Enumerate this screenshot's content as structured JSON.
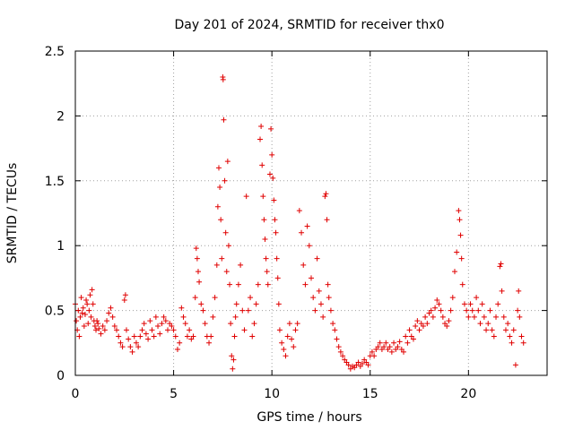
{
  "chart_data": {
    "type": "scatter",
    "title": "Day 201 of 2024, SRMTID for receiver thx0",
    "xlabel": "GPS time / hours",
    "ylabel": "SRMTID / TECUs",
    "xlim": [
      0,
      24
    ],
    "ylim": [
      0,
      2.5
    ],
    "xticks": [
      0,
      5,
      10,
      15,
      20
    ],
    "yticks": [
      0,
      0.5,
      1,
      1.5,
      2,
      2.5
    ],
    "grid": true,
    "marker": "+",
    "color": "#e00000",
    "series": [
      {
        "name": "thx0",
        "points": [
          [
            0.0,
            0.55
          ],
          [
            0.05,
            0.42
          ],
          [
            0.1,
            0.35
          ],
          [
            0.15,
            0.5
          ],
          [
            0.2,
            0.3
          ],
          [
            0.25,
            0.45
          ],
          [
            0.3,
            0.6
          ],
          [
            0.35,
            0.48
          ],
          [
            0.4,
            0.52
          ],
          [
            0.45,
            0.38
          ],
          [
            0.5,
            0.47
          ],
          [
            0.55,
            0.58
          ],
          [
            0.6,
            0.55
          ],
          [
            0.65,
            0.4
          ],
          [
            0.7,
            0.5
          ],
          [
            0.75,
            0.62
          ],
          [
            0.8,
            0.45
          ],
          [
            0.85,
            0.66
          ],
          [
            0.9,
            0.55
          ],
          [
            0.95,
            0.42
          ],
          [
            1.0,
            0.38
          ],
          [
            1.05,
            0.35
          ],
          [
            1.1,
            0.42
          ],
          [
            1.15,
            0.4
          ],
          [
            1.2,
            0.36
          ],
          [
            1.3,
            0.32
          ],
          [
            1.4,
            0.38
          ],
          [
            1.5,
            0.35
          ],
          [
            1.6,
            0.42
          ],
          [
            1.7,
            0.48
          ],
          [
            1.8,
            0.52
          ],
          [
            1.9,
            0.45
          ],
          [
            2.0,
            0.38
          ],
          [
            2.1,
            0.35
          ],
          [
            2.2,
            0.3
          ],
          [
            2.3,
            0.25
          ],
          [
            2.4,
            0.22
          ],
          [
            2.5,
            0.58
          ],
          [
            2.55,
            0.62
          ],
          [
            2.6,
            0.35
          ],
          [
            2.7,
            0.28
          ],
          [
            2.8,
            0.22
          ],
          [
            2.9,
            0.18
          ],
          [
            3.0,
            0.3
          ],
          [
            3.1,
            0.25
          ],
          [
            3.2,
            0.22
          ],
          [
            3.3,
            0.3
          ],
          [
            3.4,
            0.35
          ],
          [
            3.5,
            0.4
          ],
          [
            3.6,
            0.32
          ],
          [
            3.7,
            0.28
          ],
          [
            3.8,
            0.42
          ],
          [
            3.9,
            0.35
          ],
          [
            4.0,
            0.3
          ],
          [
            4.1,
            0.45
          ],
          [
            4.2,
            0.38
          ],
          [
            4.3,
            0.32
          ],
          [
            4.4,
            0.4
          ],
          [
            4.5,
            0.45
          ],
          [
            4.6,
            0.42
          ],
          [
            4.7,
            0.35
          ],
          [
            4.8,
            0.4
          ],
          [
            4.9,
            0.38
          ],
          [
            5.0,
            0.35
          ],
          [
            5.1,
            0.3
          ],
          [
            5.2,
            0.2
          ],
          [
            5.3,
            0.25
          ],
          [
            5.4,
            0.52
          ],
          [
            5.5,
            0.45
          ],
          [
            5.6,
            0.4
          ],
          [
            5.7,
            0.3
          ],
          [
            5.8,
            0.35
          ],
          [
            5.9,
            0.28
          ],
          [
            6.0,
            0.3
          ],
          [
            6.1,
            0.6
          ],
          [
            6.15,
            0.98
          ],
          [
            6.2,
            0.9
          ],
          [
            6.25,
            0.8
          ],
          [
            6.3,
            0.72
          ],
          [
            6.4,
            0.55
          ],
          [
            6.5,
            0.5
          ],
          [
            6.6,
            0.4
          ],
          [
            6.7,
            0.3
          ],
          [
            6.8,
            0.25
          ],
          [
            6.9,
            0.3
          ],
          [
            7.0,
            0.45
          ],
          [
            7.1,
            0.6
          ],
          [
            7.2,
            0.85
          ],
          [
            7.25,
            1.3
          ],
          [
            7.3,
            1.6
          ],
          [
            7.35,
            1.45
          ],
          [
            7.4,
            1.2
          ],
          [
            7.45,
            0.9
          ],
          [
            7.5,
            2.3
          ],
          [
            7.52,
            2.28
          ],
          [
            7.55,
            1.97
          ],
          [
            7.6,
            1.5
          ],
          [
            7.65,
            1.1
          ],
          [
            7.7,
            0.8
          ],
          [
            7.75,
            1.65
          ],
          [
            7.8,
            1.0
          ],
          [
            7.85,
            0.7
          ],
          [
            7.9,
            0.4
          ],
          [
            7.95,
            0.15
          ],
          [
            8.0,
            0.05
          ],
          [
            8.05,
            0.12
          ],
          [
            8.1,
            0.3
          ],
          [
            8.15,
            0.45
          ],
          [
            8.2,
            0.55
          ],
          [
            8.3,
            0.7
          ],
          [
            8.4,
            0.85
          ],
          [
            8.5,
            0.5
          ],
          [
            8.6,
            0.35
          ],
          [
            8.7,
            1.38
          ],
          [
            8.8,
            0.5
          ],
          [
            8.9,
            0.6
          ],
          [
            9.0,
            0.3
          ],
          [
            9.1,
            0.4
          ],
          [
            9.2,
            0.55
          ],
          [
            9.3,
            0.7
          ],
          [
            9.4,
            1.82
          ],
          [
            9.45,
            1.92
          ],
          [
            9.5,
            1.62
          ],
          [
            9.55,
            1.38
          ],
          [
            9.6,
            1.2
          ],
          [
            9.65,
            1.05
          ],
          [
            9.7,
            0.9
          ],
          [
            9.75,
            0.8
          ],
          [
            9.8,
            0.7
          ],
          [
            9.9,
            1.55
          ],
          [
            9.95,
            1.9
          ],
          [
            10.0,
            1.7
          ],
          [
            10.05,
            1.52
          ],
          [
            10.1,
            1.35
          ],
          [
            10.15,
            1.2
          ],
          [
            10.2,
            1.1
          ],
          [
            10.25,
            0.9
          ],
          [
            10.3,
            0.75
          ],
          [
            10.35,
            0.55
          ],
          [
            10.4,
            0.35
          ],
          [
            10.5,
            0.25
          ],
          [
            10.6,
            0.2
          ],
          [
            10.7,
            0.15
          ],
          [
            10.8,
            0.3
          ],
          [
            10.9,
            0.4
          ],
          [
            11.0,
            0.28
          ],
          [
            11.1,
            0.22
          ],
          [
            11.2,
            0.35
          ],
          [
            11.3,
            0.4
          ],
          [
            11.4,
            1.27
          ],
          [
            11.5,
            1.1
          ],
          [
            11.6,
            0.85
          ],
          [
            11.7,
            0.7
          ],
          [
            11.8,
            1.15
          ],
          [
            11.9,
            1.0
          ],
          [
            12.0,
            0.75
          ],
          [
            12.1,
            0.6
          ],
          [
            12.2,
            0.5
          ],
          [
            12.3,
            0.9
          ],
          [
            12.4,
            0.65
          ],
          [
            12.5,
            0.55
          ],
          [
            12.6,
            0.45
          ],
          [
            12.7,
            1.38
          ],
          [
            12.75,
            1.4
          ],
          [
            12.8,
            1.2
          ],
          [
            12.85,
            0.7
          ],
          [
            12.9,
            0.6
          ],
          [
            13.0,
            0.5
          ],
          [
            13.1,
            0.4
          ],
          [
            13.2,
            0.35
          ],
          [
            13.3,
            0.28
          ],
          [
            13.4,
            0.22
          ],
          [
            13.5,
            0.18
          ],
          [
            13.6,
            0.15
          ],
          [
            13.7,
            0.12
          ],
          [
            13.8,
            0.1
          ],
          [
            13.9,
            0.08
          ],
          [
            14.0,
            0.05
          ],
          [
            14.1,
            0.07
          ],
          [
            14.2,
            0.06
          ],
          [
            14.3,
            0.08
          ],
          [
            14.4,
            0.1
          ],
          [
            14.5,
            0.07
          ],
          [
            14.6,
            0.09
          ],
          [
            14.7,
            0.12
          ],
          [
            14.8,
            0.1
          ],
          [
            14.9,
            0.08
          ],
          [
            15.0,
            0.15
          ],
          [
            15.1,
            0.18
          ],
          [
            15.2,
            0.15
          ],
          [
            15.3,
            0.2
          ],
          [
            15.4,
            0.22
          ],
          [
            15.5,
            0.25
          ],
          [
            15.6,
            0.2
          ],
          [
            15.7,
            0.22
          ],
          [
            15.8,
            0.25
          ],
          [
            15.9,
            0.2
          ],
          [
            16.0,
            0.22
          ],
          [
            16.1,
            0.18
          ],
          [
            16.2,
            0.25
          ],
          [
            16.3,
            0.2
          ],
          [
            16.4,
            0.22
          ],
          [
            16.5,
            0.26
          ],
          [
            16.6,
            0.2
          ],
          [
            16.7,
            0.18
          ],
          [
            16.8,
            0.3
          ],
          [
            16.9,
            0.25
          ],
          [
            17.0,
            0.35
          ],
          [
            17.1,
            0.3
          ],
          [
            17.2,
            0.28
          ],
          [
            17.3,
            0.38
          ],
          [
            17.4,
            0.42
          ],
          [
            17.5,
            0.35
          ],
          [
            17.6,
            0.4
          ],
          [
            17.7,
            0.38
          ],
          [
            17.8,
            0.45
          ],
          [
            17.9,
            0.4
          ],
          [
            18.0,
            0.48
          ],
          [
            18.1,
            0.5
          ],
          [
            18.2,
            0.45
          ],
          [
            18.3,
            0.52
          ],
          [
            18.4,
            0.58
          ],
          [
            18.5,
            0.55
          ],
          [
            18.6,
            0.5
          ],
          [
            18.7,
            0.45
          ],
          [
            18.8,
            0.4
          ],
          [
            18.9,
            0.38
          ],
          [
            19.0,
            0.42
          ],
          [
            19.1,
            0.5
          ],
          [
            19.2,
            0.6
          ],
          [
            19.3,
            0.8
          ],
          [
            19.4,
            0.95
          ],
          [
            19.5,
            1.27
          ],
          [
            19.55,
            1.2
          ],
          [
            19.6,
            1.08
          ],
          [
            19.65,
            0.9
          ],
          [
            19.7,
            0.7
          ],
          [
            19.8,
            0.55
          ],
          [
            19.9,
            0.5
          ],
          [
            20.0,
            0.45
          ],
          [
            20.1,
            0.55
          ],
          [
            20.2,
            0.5
          ],
          [
            20.3,
            0.45
          ],
          [
            20.4,
            0.6
          ],
          [
            20.5,
            0.5
          ],
          [
            20.6,
            0.4
          ],
          [
            20.7,
            0.55
          ],
          [
            20.8,
            0.45
          ],
          [
            20.9,
            0.35
          ],
          [
            21.0,
            0.4
          ],
          [
            21.1,
            0.5
          ],
          [
            21.2,
            0.35
          ],
          [
            21.3,
            0.3
          ],
          [
            21.4,
            0.45
          ],
          [
            21.5,
            0.55
          ],
          [
            21.6,
            0.84
          ],
          [
            21.65,
            0.86
          ],
          [
            21.7,
            0.65
          ],
          [
            21.8,
            0.45
          ],
          [
            21.9,
            0.35
          ],
          [
            22.0,
            0.4
          ],
          [
            22.1,
            0.3
          ],
          [
            22.2,
            0.25
          ],
          [
            22.3,
            0.35
          ],
          [
            22.4,
            0.08
          ],
          [
            22.5,
            0.5
          ],
          [
            22.55,
            0.65
          ],
          [
            22.6,
            0.45
          ],
          [
            22.7,
            0.3
          ],
          [
            22.8,
            0.25
          ]
        ]
      }
    ]
  }
}
